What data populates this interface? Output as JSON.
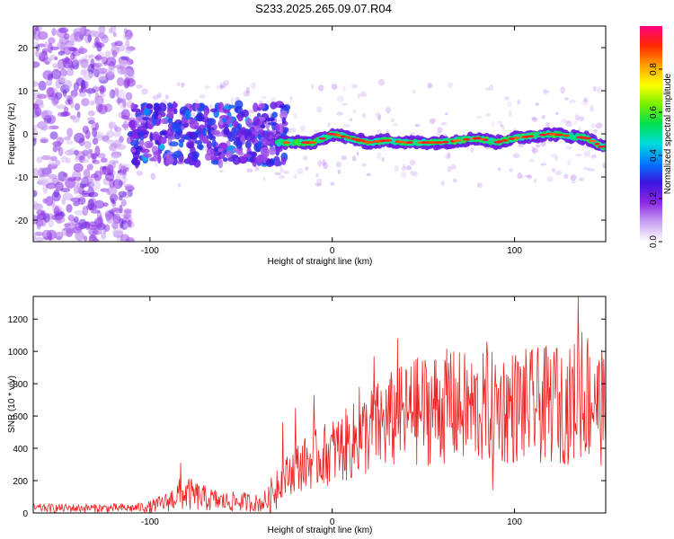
{
  "title": "S233.2025.265.09.07.R04",
  "chart_data": [
    {
      "type": "heatmap",
      "name": "spectrogram",
      "xlabel": "Height of straight line (km)",
      "ylabel": "Frequency (Hz)",
      "xlim": [
        -164,
        150
      ],
      "ylim": [
        -25,
        25
      ],
      "xticks": [
        -100,
        0,
        100
      ],
      "yticks": [
        -20,
        -10,
        0,
        10,
        20
      ],
      "ridge": {
        "description": "dominant narrowband frequency track (Hz) vs height (km)",
        "x": [
          -30,
          -20,
          -10,
          0,
          10,
          20,
          30,
          40,
          50,
          60,
          70,
          80,
          90,
          100,
          110,
          120,
          130,
          140,
          148
        ],
        "y": [
          -2,
          -2,
          -2,
          0,
          -1,
          -2,
          -1.5,
          -2,
          -2,
          -2,
          -1.5,
          -1,
          -2,
          -1,
          -0.5,
          0,
          -0.5,
          -1,
          -3
        ]
      },
      "colorbar": {
        "label": "Normalized spectral amplitude",
        "range": [
          0,
          1
        ],
        "ticks": [
          0.0,
          0.2,
          0.4,
          0.6,
          0.8
        ],
        "tick_labels": [
          "0.0",
          "0.2",
          "0.4",
          "0.6",
          "0.8"
        ],
        "colors": [
          "#ffffff",
          "#c8a0f0",
          "#8c28e6",
          "#3c14dc",
          "#0078ff",
          "#00dcdc",
          "#00e050",
          "#78f000",
          "#ffff00",
          "#ffa000",
          "#ff2800",
          "#ff0080"
        ]
      }
    },
    {
      "type": "line",
      "name": "snr",
      "xlabel": "Height of straight line (km)",
      "ylabel": "SNR (10 * v/v)",
      "xlim": [
        -164,
        150
      ],
      "ylim": [
        0,
        1340
      ],
      "xticks": [
        -100,
        0,
        100
      ],
      "yticks": [
        0,
        200,
        400,
        600,
        800,
        1000,
        1200
      ],
      "line_color": "#ee2222",
      "envelope": {
        "x": [
          -164,
          -110,
          -100,
          -90,
          -85,
          -80,
          -70,
          -60,
          -50,
          -40,
          -35,
          -30,
          -20,
          -10,
          0,
          10,
          20,
          30,
          40,
          50,
          60,
          70,
          80,
          90,
          100,
          110,
          120,
          130,
          135,
          140,
          145,
          150
        ],
        "y": [
          30,
          30,
          40,
          70,
          110,
          120,
          90,
          70,
          70,
          60,
          80,
          180,
          280,
          330,
          380,
          430,
          500,
          560,
          600,
          640,
          660,
          650,
          640,
          650,
          660,
          660,
          670,
          660,
          720,
          700,
          680,
          600
        ]
      },
      "spikes": [
        {
          "x": -83,
          "y": 310
        },
        {
          "x": -27,
          "y": 560
        },
        {
          "x": -20,
          "y": 650
        },
        {
          "x": -10,
          "y": 730
        },
        {
          "x": 15,
          "y": 780
        },
        {
          "x": 23,
          "y": 970
        },
        {
          "x": 36,
          "y": 1080
        },
        {
          "x": 45,
          "y": 940
        },
        {
          "x": 65,
          "y": 990
        },
        {
          "x": 85,
          "y": 1060
        },
        {
          "x": 88,
          "y": 140
        },
        {
          "x": 123,
          "y": 1020
        },
        {
          "x": 135,
          "y": 1340
        },
        {
          "x": 137,
          "y": 1120
        },
        {
          "x": 140,
          "y": 1080
        },
        {
          "x": 144,
          "y": 860
        },
        {
          "x": 148,
          "y": 1010
        }
      ]
    }
  ]
}
